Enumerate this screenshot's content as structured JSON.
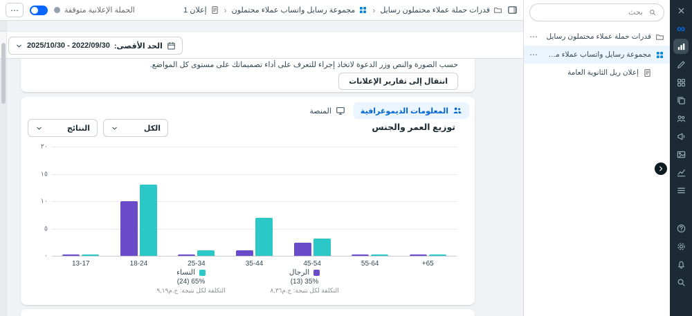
{
  "theme": {
    "accent_blue": "#0064D1",
    "selected_bg": "#EBF5FF",
    "rail_bg": "#1C2B33",
    "men_color": "#6A4BC9",
    "women_color": "#2CC8C8"
  },
  "topbar": {
    "breadcrumbs": [
      {
        "label": "قدرات حملة عملاء محتملون رسايل",
        "icon": "folder-icon"
      },
      {
        "label": "مجموعة رسايل واتساب عملاء محتملون",
        "icon": "adset-grid-icon"
      },
      {
        "label": "1 إعلان",
        "icon": "ad-doc-icon"
      }
    ],
    "separator": "‹",
    "status_text": "الحملة الإعلانية متوقفة",
    "more_label": "⋯"
  },
  "filter_bar": {
    "date_label": "الحد الأقصى:",
    "date_range": "2025/10/30 - 2022/09/30"
  },
  "creative_card": {
    "description": "حسب الصورة والنص وزر الدعوة لاتخاذ إجراء للتعرف على أداء تصميماتك على مستوى كل المواضع.",
    "button_label": "انتقال إلى تقارير الإعلانات"
  },
  "insights_card": {
    "tabs": [
      {
        "label": "المعلومات الديموغرافية",
        "selected": true
      },
      {
        "label": "المنصة",
        "selected": false
      }
    ],
    "filters": {
      "breakdown": "الكل",
      "metric": "النتائج"
    }
  },
  "chart_data": {
    "type": "bar",
    "title": "توزيع العمر والجنس",
    "categories": [
      "13-17",
      "18-24",
      "25-34",
      "35-44",
      "45-54",
      "55-64",
      "+65"
    ],
    "series": [
      {
        "name": "الرجال",
        "color": "#6A4BC9",
        "values": [
          0.2,
          10,
          0.3,
          1,
          2.4,
          0.2,
          0.2
        ],
        "share": "(13) 35%",
        "cost_per_result": "التكلفة لكل نتيجة: ج.م٨,٣٦"
      },
      {
        "name": "النساء",
        "color": "#2CC8C8",
        "values": [
          0.3,
          13,
          1,
          7,
          3.2,
          0.3,
          0.3
        ],
        "share": "(24) 65%",
        "cost_per_result": "التكلفة لكل نتيجة: ج.م٩,١٩"
      }
    ],
    "ylim": [
      0,
      20
    ],
    "yticks": [
      0,
      5,
      10,
      15,
      20
    ],
    "ytick_labels": [
      "٠",
      "٥",
      "١٠",
      "١٥",
      "٢٠"
    ],
    "grid": true,
    "legend_position": "bottom"
  },
  "side_panel": {
    "search_placeholder": "بحث",
    "tree": [
      {
        "label": "قدرات حملة عملاء محتملون رسايل",
        "level": 1,
        "selected": false
      },
      {
        "label": "مجموعة رسايل واتساب عملاء محتملون",
        "level": 2,
        "selected": true
      },
      {
        "label": "إعلان ريل الثانوية العامة",
        "level": 3,
        "selected": false
      }
    ],
    "more_label": "⋯"
  },
  "rail": {
    "icons": [
      "close-icon",
      "meta-logo",
      "insights-icon",
      "edit-icon",
      "apps-grid-icon",
      "duplicate-icon",
      "audiences-icon",
      "promote-icon",
      "media-icon",
      "reports-icon",
      "menu-icon",
      "help-icon",
      "settings-icon",
      "notifications-icon",
      "search-icon"
    ],
    "active_icon": "insights-icon"
  }
}
